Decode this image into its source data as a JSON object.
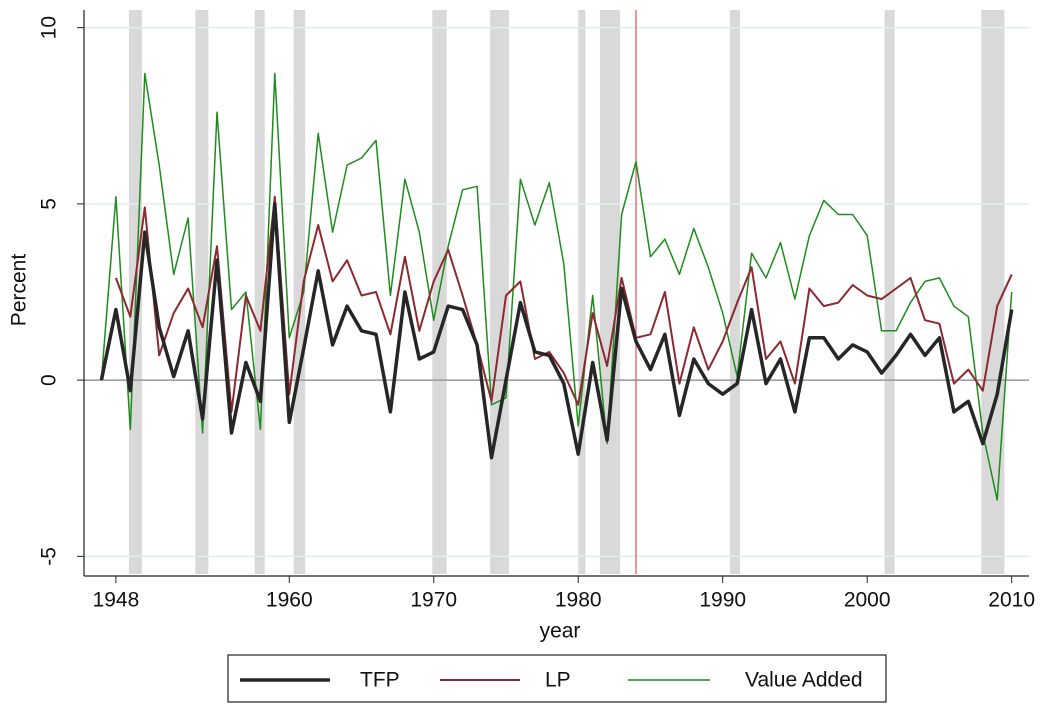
{
  "chart_data": {
    "type": "line",
    "x_label": "year",
    "y_label": "Percent",
    "x": [
      1947,
      1948,
      1949,
      1950,
      1951,
      1952,
      1953,
      1954,
      1955,
      1956,
      1957,
      1958,
      1959,
      1960,
      1961,
      1962,
      1963,
      1964,
      1965,
      1966,
      1967,
      1968,
      1969,
      1970,
      1971,
      1972,
      1973,
      1974,
      1975,
      1976,
      1977,
      1978,
      1979,
      1980,
      1981,
      1982,
      1983,
      1984,
      1985,
      1986,
      1987,
      1988,
      1989,
      1990,
      1991,
      1992,
      1993,
      1994,
      1995,
      1996,
      1997,
      1998,
      1999,
      2000,
      2001,
      2002,
      2003,
      2004,
      2005,
      2006,
      2007,
      2008,
      2009,
      2010
    ],
    "series": [
      {
        "name": "TFP",
        "color": "#262626",
        "line_width": 3.5,
        "values": [
          0,
          2.0,
          -0.3,
          4.2,
          1.5,
          0.1,
          1.4,
          -1.1,
          3.4,
          -1.5,
          0.5,
          -0.6,
          5.0,
          -1.2,
          0.9,
          3.1,
          1.0,
          2.1,
          1.4,
          1.3,
          -0.9,
          2.5,
          0.6,
          0.8,
          2.1,
          2.0,
          1.0,
          -2.2,
          0.0,
          2.2,
          0.8,
          0.7,
          -0.1,
          -2.1,
          0.5,
          -1.7,
          2.6,
          1.1,
          0.3,
          1.3,
          -1.0,
          0.6,
          -0.1,
          -0.4,
          -0.1,
          2.0,
          -0.1,
          0.6,
          -0.9,
          1.2,
          1.2,
          0.6,
          1.0,
          0.8,
          0.2,
          0.7,
          1.3,
          0.7,
          1.2,
          -0.9,
          -0.6,
          -1.8,
          -0.4,
          2.0
        ]
      },
      {
        "name": "LP",
        "color": "#8b2a30",
        "line_width": 2,
        "values": [
          null,
          2.9,
          1.8,
          4.9,
          0.7,
          1.9,
          2.6,
          1.5,
          3.8,
          -0.9,
          2.4,
          1.4,
          5.2,
          -0.4,
          2.8,
          4.4,
          2.8,
          3.4,
          2.4,
          2.5,
          1.3,
          3.5,
          1.4,
          2.8,
          3.7,
          2.4,
          1.0,
          -0.6,
          2.4,
          2.8,
          0.6,
          0.8,
          0.2,
          -0.7,
          1.9,
          0.4,
          2.9,
          1.2,
          1.3,
          2.5,
          -0.1,
          1.5,
          0.3,
          1.1,
          2.2,
          3.2,
          0.6,
          1.1,
          -0.1,
          2.6,
          2.1,
          2.2,
          2.7,
          2.4,
          2.3,
          2.6,
          2.9,
          1.7,
          1.6,
          -0.1,
          0.3,
          -0.3,
          2.1,
          3.0
        ]
      },
      {
        "name": "Value Added",
        "color": "#1e8c1e",
        "line_width": 1.5,
        "values": [
          0.0,
          5.2,
          -1.4,
          8.7,
          6.1,
          3.0,
          4.6,
          -1.5,
          7.6,
          2.0,
          2.5,
          -1.4,
          8.7,
          1.2,
          2.5,
          7.0,
          4.2,
          6.1,
          6.3,
          6.8,
          2.4,
          5.7,
          4.2,
          1.7,
          3.8,
          5.4,
          5.5,
          -0.7,
          -0.5,
          5.7,
          4.4,
          5.6,
          3.3,
          -1.3,
          2.4,
          -1.8,
          4.7,
          6.2,
          3.5,
          4.0,
          3.0,
          4.3,
          3.2,
          1.9,
          0.1,
          3.6,
          2.9,
          3.9,
          2.3,
          4.1,
          5.1,
          4.7,
          4.7,
          4.1,
          1.4,
          1.4,
          2.2,
          2.8,
          2.9,
          2.1,
          1.8,
          -1.5,
          -3.4,
          2.5
        ]
      }
    ],
    "recessions": [
      [
        1948.9,
        1949.8
      ],
      [
        1953.5,
        1954.4
      ],
      [
        1957.6,
        1958.3
      ],
      [
        1960.3,
        1961.1
      ],
      [
        1969.9,
        1970.9
      ],
      [
        1973.9,
        1975.2
      ],
      [
        1980.0,
        1980.5
      ],
      [
        1981.5,
        1982.9
      ],
      [
        1990.5,
        1991.2
      ],
      [
        2001.2,
        2001.9
      ],
      [
        2007.9,
        2009.5
      ]
    ],
    "recession_color": "#d9d9d9",
    "vline": 1984,
    "vline_color": "#e0505a",
    "hline": 0,
    "xlim": [
      1946,
      2011.2
    ],
    "xticks": [
      1948,
      1960,
      1970,
      1980,
      1990,
      2000,
      2010
    ],
    "ylim": [
      -5.5,
      10.5
    ],
    "yticks": [
      -5,
      0,
      5,
      10
    ],
    "grid": true,
    "legend": "bottom"
  }
}
